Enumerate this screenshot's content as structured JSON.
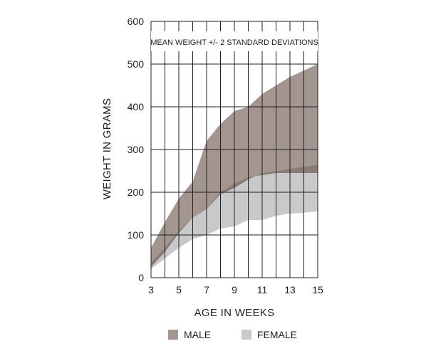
{
  "chart_data": {
    "type": "area",
    "title": "",
    "annotation": "MEAN WEIGHT +/- 2 STANDARD DEVIATIONS",
    "xlabel": "AGE IN WEEKS",
    "ylabel": "WEIGHT IN GRAMS",
    "xlim": [
      3,
      15
    ],
    "ylim": [
      0,
      600
    ],
    "x_ticks": [
      3,
      5,
      7,
      9,
      11,
      13,
      15
    ],
    "y_ticks": [
      0,
      100,
      200,
      300,
      400,
      500,
      600
    ],
    "grid": true,
    "legend_position": "bottom",
    "x": [
      3,
      4,
      5,
      6,
      7,
      8,
      9,
      10,
      11,
      12,
      13,
      14,
      15
    ],
    "series": [
      {
        "name": "MALE",
        "color": "#a39590",
        "lower": [
          25,
          60,
          105,
          140,
          160,
          195,
          210,
          230,
          245,
          250,
          255,
          260,
          265
        ],
        "upper": [
          70,
          130,
          185,
          225,
          320,
          360,
          390,
          400,
          430,
          450,
          470,
          485,
          500
        ]
      },
      {
        "name": "FEMALE",
        "color": "#c8c9cb",
        "lower": [
          20,
          45,
          70,
          90,
          100,
          115,
          120,
          135,
          135,
          145,
          150,
          152,
          155
        ],
        "upper": [
          35,
          70,
          110,
          140,
          160,
          200,
          220,
          235,
          240,
          245,
          245,
          245,
          245
        ]
      }
    ],
    "overlap_color": "#8a7a75"
  }
}
